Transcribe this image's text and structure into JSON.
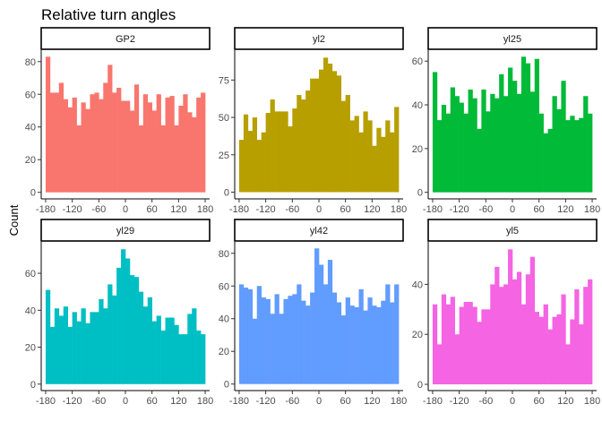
{
  "chart_data": {
    "type": "bar",
    "title": "Relative turn angles",
    "xlabel": "",
    "ylabel": "Count",
    "grid": false,
    "legend": "none",
    "x_ticks": [
      -180,
      -120,
      -60,
      0,
      60,
      120,
      180
    ],
    "bin_centers": [
      -175,
      -165,
      -155,
      -145,
      -135,
      -125,
      -115,
      -105,
      -95,
      -85,
      -75,
      -65,
      -55,
      -45,
      -35,
      -25,
      -15,
      -5,
      5,
      15,
      25,
      35,
      45,
      55,
      65,
      75,
      85,
      95,
      105,
      115,
      125,
      135,
      145,
      155,
      165,
      175
    ],
    "panels": [
      {
        "name": "GP2",
        "color": "#F8766D",
        "ylim": [
          -4,
          87
        ],
        "y_ticks": [
          0,
          20,
          40,
          60,
          80
        ],
        "values": [
          83,
          61,
          61,
          67,
          57,
          52,
          58,
          41,
          55,
          51,
          60,
          61,
          57,
          67,
          78,
          61,
          64,
          56,
          56,
          50,
          66,
          41,
          60,
          55,
          50,
          60,
          41,
          58,
          59,
          41,
          53,
          60,
          49,
          46,
          58,
          61
        ]
      },
      {
        "name": "yl2",
        "color": "#B79F00",
        "ylim": [
          -4.5,
          95
        ],
        "y_ticks": [
          0,
          25,
          50,
          75
        ],
        "values": [
          35,
          52,
          41,
          50,
          35,
          40,
          53,
          62,
          54,
          54,
          54,
          44,
          56,
          65,
          62,
          68,
          76,
          76,
          82,
          90,
          86,
          81,
          78,
          61,
          65,
          48,
          51,
          40,
          54,
          48,
          31,
          43,
          37,
          48,
          40,
          57
        ]
      },
      {
        "name": "yl25",
        "color": "#00BA38",
        "ylim": [
          -3,
          65
        ],
        "y_ticks": [
          0,
          20,
          40,
          60
        ],
        "values": [
          55,
          33,
          40,
          36,
          48,
          44,
          41,
          36,
          47,
          43,
          29,
          47,
          37,
          45,
          43,
          54,
          44,
          57,
          51,
          45,
          62,
          59,
          46,
          61,
          36,
          27,
          29,
          44,
          38,
          51,
          33,
          35,
          33,
          34,
          44,
          36
        ]
      },
      {
        "name": "yl29",
        "color": "#00BFC4",
        "ylim": [
          -3.5,
          77
        ],
        "y_ticks": [
          0,
          20,
          40,
          60
        ],
        "values": [
          51,
          31,
          41,
          37,
          42,
          31,
          39,
          34,
          41,
          33,
          39,
          39,
          46,
          41,
          54,
          48,
          63,
          73,
          68,
          59,
          58,
          50,
          42,
          47,
          34,
          37,
          29,
          36,
          36,
          32,
          27,
          27,
          38,
          41,
          29,
          27
        ]
      },
      {
        "name": "yl42",
        "color": "#619CFF",
        "ylim": [
          -4,
          87
        ],
        "y_ticks": [
          0,
          20,
          40,
          60,
          80
        ],
        "values": [
          61,
          59,
          58,
          40,
          60,
          53,
          52,
          43,
          55,
          43,
          52,
          54,
          55,
          61,
          51,
          48,
          56,
          83,
          73,
          61,
          76,
          56,
          50,
          42,
          53,
          48,
          47,
          58,
          45,
          53,
          48,
          47,
          51,
          61,
          50,
          61
        ]
      },
      {
        "name": "yl5",
        "color": "#F564E3",
        "ylim": [
          -2.5,
          57
        ],
        "y_ticks": [
          0,
          20,
          40
        ],
        "values": [
          32,
          16,
          36,
          32,
          35,
          20,
          31,
          33,
          33,
          31,
          25,
          30,
          30,
          40,
          47,
          39,
          40,
          54,
          42,
          45,
          32,
          44,
          51,
          29,
          27,
          32,
          22,
          27,
          28,
          36,
          16,
          26,
          38,
          24,
          39,
          42
        ]
      }
    ]
  }
}
